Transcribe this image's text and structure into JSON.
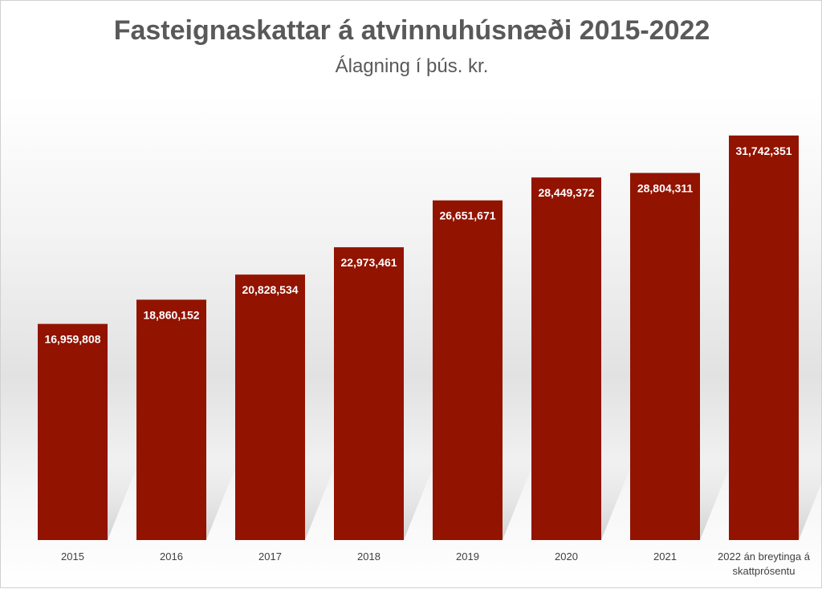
{
  "colors": {
    "bar": "#921300",
    "text": "#595959"
  },
  "chart_data": {
    "type": "bar",
    "title": "Fasteignaskattar á atvinnuhúsnæði 2015-2022",
    "subtitle": "Álagning í þús. kr.",
    "categories": [
      [
        "2015"
      ],
      [
        "2016"
      ],
      [
        "2017"
      ],
      [
        "2018"
      ],
      [
        "2019"
      ],
      [
        "2020"
      ],
      [
        "2021"
      ],
      [
        "2022 án breytinga á",
        "skattprósentu"
      ]
    ],
    "values": [
      16959808,
      18860152,
      20828534,
      22973461,
      26651671,
      28449372,
      28804311,
      31742351
    ],
    "data_labels": [
      "16,959,808",
      "18,860,152",
      "20,828,534",
      "22,973,461",
      "26,651,671",
      "28,449,372",
      "28,804,311",
      "31,742,351"
    ],
    "ylim": [
      0,
      34000000
    ],
    "grid": false,
    "legend": "none"
  }
}
